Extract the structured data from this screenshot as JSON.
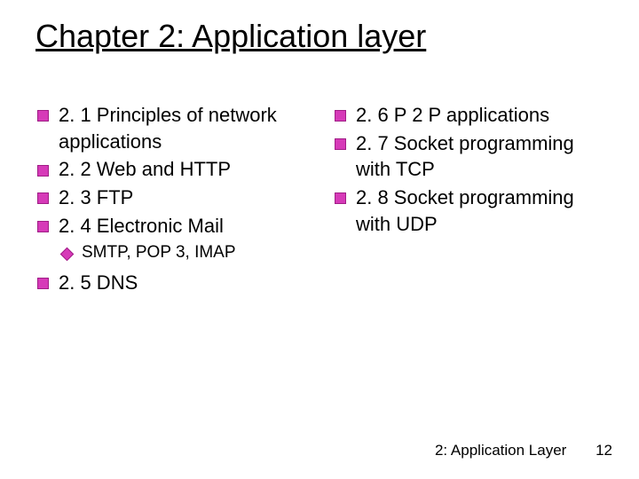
{
  "title": "Chapter 2: Application layer",
  "bullet_color": "#d63ab8",
  "left": [
    {
      "text": "2. 1 Principles of network applications",
      "sub": []
    },
    {
      "text": "2. 2 Web and HTTP",
      "sub": []
    },
    {
      "text": "2. 3 FTP",
      "sub": []
    },
    {
      "text": "2. 4 Electronic Mail",
      "sub": [
        "SMTP, POP 3, IMAP"
      ]
    },
    {
      "text": "2. 5 DNS",
      "sub": []
    }
  ],
  "right": [
    {
      "text": "2. 6 P 2 P applications",
      "sub": []
    },
    {
      "text": "2. 7 Socket programming with TCP",
      "sub": []
    },
    {
      "text": "2. 8 Socket programming with UDP",
      "sub": []
    }
  ],
  "footer_label": "2: Application Layer",
  "page_number": "12"
}
